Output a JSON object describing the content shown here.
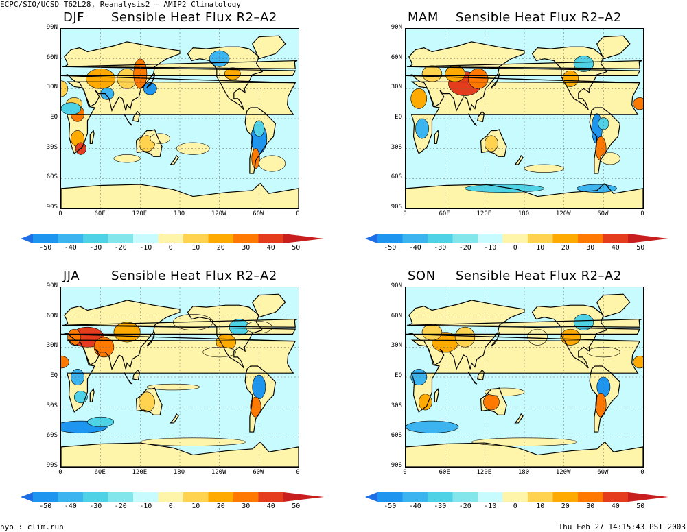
{
  "header": "ECPC/SIO/UCSD T62L28, Reanalysis2 – AMIP2 Climatology",
  "footer_left": "hyo : clim.run",
  "footer_right": "Thu Feb 27 14:15:43 PST 2003",
  "variable_title": "Sensible Heat Flux R2–A2",
  "panels": [
    {
      "season": "DJF",
      "title": "Sensible Heat Flux R2–A2"
    },
    {
      "season": "MAM",
      "title": "Sensible Heat Flux R2–A2"
    },
    {
      "season": "JJA",
      "title": "Sensible Heat Flux R2–A2"
    },
    {
      "season": "SON",
      "title": "Sensible Heat Flux R2–A2"
    }
  ],
  "lat_labels": [
    "90N",
    "60N",
    "30N",
    "EQ",
    "30S",
    "60S",
    "90S"
  ],
  "lon_labels": [
    "0",
    "60E",
    "120E",
    "180",
    "120W",
    "60W",
    "0"
  ],
  "colorbar": {
    "labels": [
      "-50",
      "-40",
      "-30",
      "-20",
      "-10",
      "0",
      "10",
      "20",
      "30",
      "40",
      "50"
    ],
    "colors": [
      "#1e6ee6",
      "#1e96f0",
      "#3cb4f0",
      "#50d2e6",
      "#82e6eb",
      "#c8fbfd",
      "#fff5aa",
      "#ffd250",
      "#ffaa00",
      "#ff7800",
      "#e63c1e",
      "#c81e1e"
    ]
  },
  "legend_colors": {
    "land_outline": "#000000"
  }
}
